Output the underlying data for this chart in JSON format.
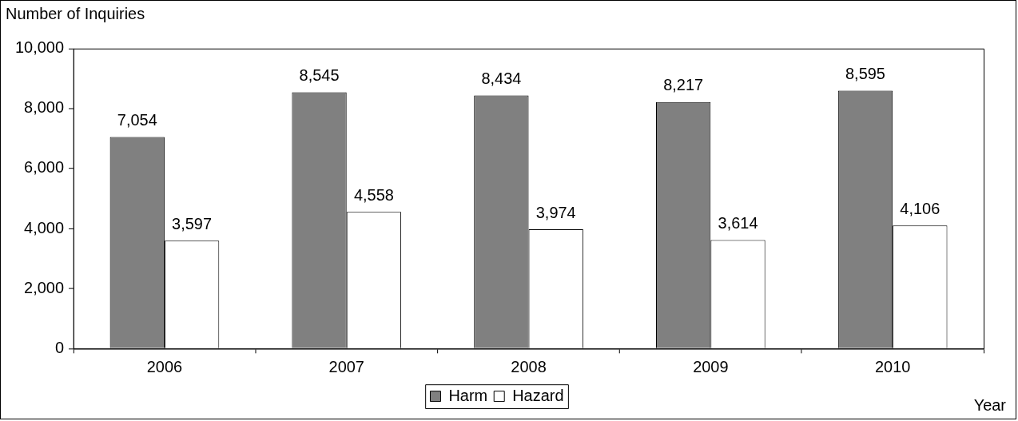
{
  "chart_data": {
    "type": "bar",
    "ylabel": "Number of Inquiries",
    "xlabel": "Year",
    "categories": [
      "2006",
      "2007",
      "2008",
      "2009",
      "2010"
    ],
    "series": [
      {
        "name": "Harm",
        "color": "#808080",
        "values": [
          7054,
          8545,
          8434,
          8217,
          8595
        ],
        "value_labels": [
          "7,054",
          "8,545",
          "8,434",
          "8,217",
          "8,595"
        ]
      },
      {
        "name": "Hazard",
        "color": "#ffffff",
        "values": [
          3597,
          4558,
          3974,
          3614,
          4106
        ],
        "value_labels": [
          "3,597",
          "4,558",
          "3,974",
          "3,614",
          "4,106"
        ]
      }
    ],
    "ylim": [
      0,
      10000
    ],
    "yticks": [
      {
        "value": 0,
        "label": "0"
      },
      {
        "value": 2000,
        "label": "2,000"
      },
      {
        "value": 4000,
        "label": "4,000"
      },
      {
        "value": 6000,
        "label": "6,000"
      },
      {
        "value": 8000,
        "label": "8,000"
      },
      {
        "value": 10000,
        "label": "10,000"
      }
    ],
    "grid": false,
    "legend": "bottom"
  }
}
